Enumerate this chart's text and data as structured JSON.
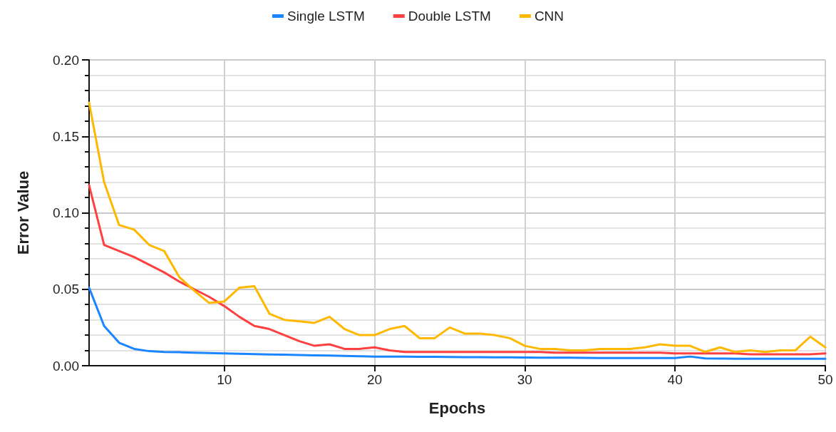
{
  "chart_data": {
    "type": "line",
    "xlabel": "Epochs",
    "ylabel": "Error Value",
    "x": [
      1,
      2,
      3,
      4,
      5,
      6,
      7,
      8,
      9,
      10,
      11,
      12,
      13,
      14,
      15,
      16,
      17,
      18,
      19,
      20,
      21,
      22,
      23,
      24,
      25,
      26,
      27,
      28,
      29,
      30,
      31,
      32,
      33,
      34,
      35,
      36,
      37,
      38,
      39,
      40,
      41,
      42,
      43,
      44,
      45,
      46,
      47,
      48,
      49,
      50
    ],
    "series": [
      {
        "name": "Single LSTM",
        "color": "#1a85ff",
        "values": [
          0.051,
          0.026,
          0.015,
          0.011,
          0.0095,
          0.009,
          0.0088,
          0.0085,
          0.0083,
          0.008,
          0.0078,
          0.0076,
          0.0074,
          0.0072,
          0.007,
          0.0068,
          0.0066,
          0.0064,
          0.0062,
          0.006,
          0.006,
          0.006,
          0.0058,
          0.0058,
          0.0057,
          0.0056,
          0.0056,
          0.0055,
          0.0055,
          0.0054,
          0.0053,
          0.0052,
          0.0052,
          0.0051,
          0.005,
          0.005,
          0.005,
          0.005,
          0.005,
          0.005,
          0.006,
          0.0048,
          0.0047,
          0.0046,
          0.0046,
          0.0045,
          0.0045,
          0.0045,
          0.0045,
          0.0045
        ]
      },
      {
        "name": "Double LSTM",
        "color": "#ff4040",
        "values": [
          0.118,
          0.079,
          0.075,
          0.071,
          0.066,
          0.061,
          0.055,
          0.05,
          0.045,
          0.039,
          0.032,
          0.026,
          0.024,
          0.02,
          0.016,
          0.013,
          0.014,
          0.011,
          0.011,
          0.012,
          0.01,
          0.009,
          0.009,
          0.009,
          0.009,
          0.009,
          0.009,
          0.009,
          0.009,
          0.009,
          0.009,
          0.0085,
          0.0085,
          0.0085,
          0.0085,
          0.0085,
          0.0085,
          0.0085,
          0.0085,
          0.008,
          0.008,
          0.008,
          0.008,
          0.008,
          0.0075,
          0.0075,
          0.0075,
          0.0075,
          0.0075,
          0.008
        ]
      },
      {
        "name": "CNN",
        "color": "#ffb800",
        "values": [
          0.172,
          0.12,
          0.092,
          0.089,
          0.079,
          0.075,
          0.058,
          0.049,
          0.041,
          0.042,
          0.051,
          0.052,
          0.034,
          0.03,
          0.029,
          0.028,
          0.032,
          0.024,
          0.02,
          0.02,
          0.024,
          0.026,
          0.018,
          0.018,
          0.025,
          0.021,
          0.021,
          0.02,
          0.018,
          0.013,
          0.011,
          0.011,
          0.01,
          0.01,
          0.011,
          0.011,
          0.011,
          0.012,
          0.014,
          0.013,
          0.013,
          0.009,
          0.012,
          0.009,
          0.01,
          0.009,
          0.01,
          0.01,
          0.019,
          0.012
        ]
      }
    ],
    "xlim": [
      1,
      50
    ],
    "xticks": [
      10,
      20,
      30,
      40,
      50
    ],
    "ylim": [
      0,
      0.2
    ],
    "yticks": [
      {
        "value": 0,
        "label": "0.00"
      },
      {
        "value": 0.05,
        "label": "0.05"
      },
      {
        "value": 0.1,
        "label": "0.10"
      },
      {
        "value": 0.15,
        "label": "0.15"
      },
      {
        "value": 0.2,
        "label": "0.20"
      }
    ],
    "grid": true,
    "legend": "top",
    "marker": "none",
    "line_style": "solid"
  }
}
